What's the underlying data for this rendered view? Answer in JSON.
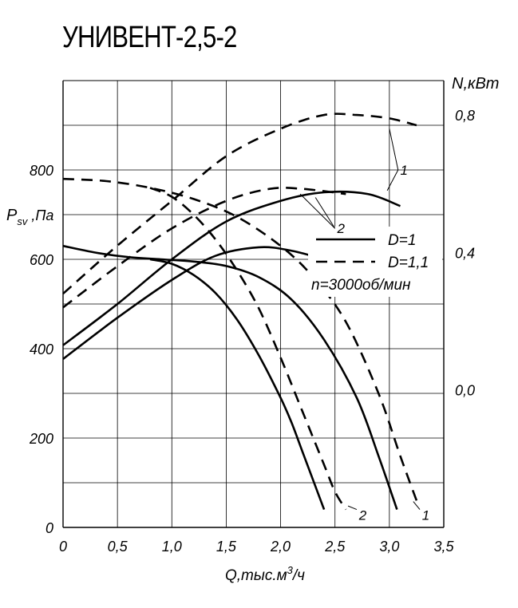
{
  "chart_data": {
    "type": "line",
    "title": "УНИВЕНТ-2,5-2",
    "xlabel_main": "Q,тыс.м",
    "xlabel_sup": "3",
    "xlabel_tail": "/ч",
    "ylabel_left_main": "P",
    "ylabel_left_sub": "sv",
    "ylabel_left_tail": " ,Па",
    "ylabel_right": "N,кВт",
    "xlim": [
      0,
      3.5
    ],
    "ylim_left": [
      0,
      1000
    ],
    "ylim_right": [
      -0.4,
      0.9
    ],
    "x_ticks": [
      {
        "value": 0,
        "label": "0"
      },
      {
        "value": 0.5,
        "label": "0,5"
      },
      {
        "value": 1.0,
        "label": "1,0"
      },
      {
        "value": 1.5,
        "label": "1,5"
      },
      {
        "value": 2.0,
        "label": "2,0"
      },
      {
        "value": 2.5,
        "label": "2,5"
      },
      {
        "value": 3.0,
        "label": "3,0"
      },
      {
        "value": 3.5,
        "label": "3,5"
      }
    ],
    "y_left_ticks": [
      {
        "value": 0,
        "label": "0"
      },
      {
        "value": 200,
        "label": "200"
      },
      {
        "value": 400,
        "label": "400"
      },
      {
        "value": 600,
        "label": "600"
      },
      {
        "value": 800,
        "label": "800"
      }
    ],
    "y_right_ticks": [
      {
        "value": 0.0,
        "label": "0,0"
      },
      {
        "value": 0.4,
        "label": "0,4"
      },
      {
        "value": 0.8,
        "label": "0,8"
      }
    ],
    "legend": {
      "placement": "right",
      "entries": [
        {
          "label": "D=1",
          "style": "solid"
        },
        {
          "label": "D=1,1",
          "style": "dashed"
        }
      ],
      "note": "n=3000об/мин"
    },
    "series": [
      {
        "name": "P D=1 (curve 1)",
        "axis": "left",
        "style": "solid",
        "x": [
          0,
          0.3,
          0.6,
          0.9,
          1.2,
          1.5,
          1.8,
          2.1,
          2.4,
          2.7,
          2.9,
          3.07
        ],
        "y": [
          630,
          615,
          605,
          600,
          595,
          585,
          560,
          510,
          420,
          290,
          160,
          40
        ]
      },
      {
        "name": "P D=1 (curve 2)",
        "axis": "left",
        "style": "solid",
        "x": [
          0.8,
          1.0,
          1.2,
          1.4,
          1.6,
          1.8,
          2.0,
          2.1,
          2.2,
          2.3,
          2.4
        ],
        "y": [
          600,
          590,
          565,
          525,
          465,
          385,
          290,
          235,
          170,
          105,
          40
        ]
      },
      {
        "name": "P D=1,1 (curve 1)",
        "axis": "left",
        "style": "dashed",
        "x": [
          0,
          0.4,
          0.8,
          1.2,
          1.6,
          2.0,
          2.3,
          2.6,
          2.9,
          3.1,
          3.25
        ],
        "y": [
          780,
          775,
          760,
          735,
          695,
          630,
          560,
          460,
          300,
          160,
          60
        ]
      },
      {
        "name": "P D=1,1 (curve 2)",
        "axis": "left",
        "style": "dashed",
        "x": [
          0.8,
          1.0,
          1.2,
          1.4,
          1.6,
          1.8,
          2.0,
          2.2,
          2.4,
          2.5,
          2.6
        ],
        "y": [
          760,
          740,
          700,
          645,
          575,
          490,
          380,
          260,
          140,
          80,
          40
        ]
      },
      {
        "name": "N D=1 (curve 1)",
        "axis": "right",
        "style": "solid",
        "x": [
          0,
          0.5,
          1.0,
          1.5,
          2.0,
          2.4,
          2.8,
          3.1
        ],
        "y": [
          0.13,
          0.25,
          0.38,
          0.49,
          0.55,
          0.575,
          0.57,
          0.535
        ]
      },
      {
        "name": "N D=1 (curve 2)",
        "axis": "right",
        "style": "solid",
        "x": [
          0,
          0.5,
          1.0,
          1.4,
          1.8,
          2.1,
          2.4
        ],
        "y": [
          0.09,
          0.21,
          0.32,
          0.39,
          0.415,
          0.405,
          0.38
        ]
      },
      {
        "name": "N D=1,1 (curve 1)",
        "axis": "right",
        "style": "dashed",
        "x": [
          0,
          0.5,
          1.0,
          1.5,
          2.0,
          2.4,
          2.7,
          3.0,
          3.25
        ],
        "y": [
          0.28,
          0.42,
          0.55,
          0.68,
          0.76,
          0.8,
          0.8,
          0.79,
          0.77
        ]
      },
      {
        "name": "N D=1,1 (curve 2)",
        "axis": "right",
        "style": "dashed",
        "x": [
          0,
          0.5,
          1.0,
          1.5,
          1.9,
          2.2,
          2.6
        ],
        "y": [
          0.24,
          0.36,
          0.47,
          0.55,
          0.585,
          0.585,
          0.57
        ]
      }
    ],
    "annotations": [
      {
        "label": "1",
        "x": 3.3,
        "y_left": 28,
        "axis": "left"
      },
      {
        "label": "2",
        "x": 2.72,
        "y_left": 28,
        "axis": "left"
      },
      {
        "label": "1",
        "x": 3.1,
        "y_right": 0.64,
        "axis": "right"
      },
      {
        "label": "2",
        "x": 2.52,
        "y_right": 0.47,
        "axis": "right"
      }
    ]
  }
}
